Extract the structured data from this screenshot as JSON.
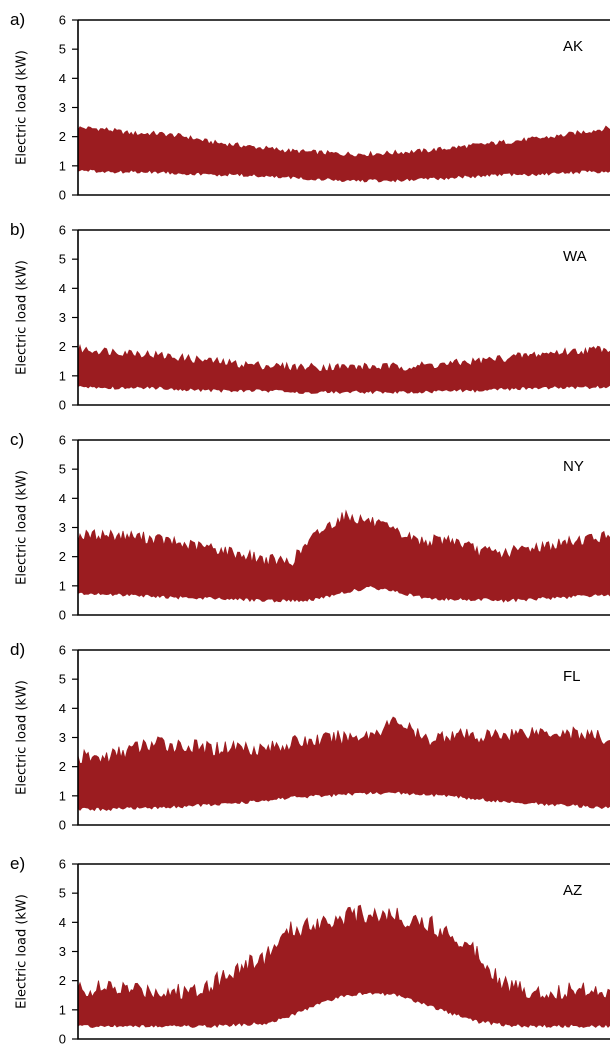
{
  "chart_data": [
    {
      "type": "area",
      "panel_label": "a)",
      "state": "AK",
      "title": "",
      "xlabel": "",
      "ylabel": "Electric load (kW)",
      "ylim": [
        0,
        6
      ],
      "yticks": [
        "0",
        "1",
        "2",
        "3",
        "4",
        "5",
        "6"
      ],
      "x": [
        0,
        0.05,
        0.1,
        0.15,
        0.2,
        0.25,
        0.3,
        0.35,
        0.4,
        0.45,
        0.5,
        0.55,
        0.6,
        0.65,
        0.7,
        0.75,
        0.8,
        0.85,
        0.9,
        0.95,
        1.0
      ],
      "series": [
        {
          "name": "",
          "kind": "upper",
          "values": [
            2.3,
            2.25,
            2.1,
            2.1,
            2.0,
            1.8,
            1.7,
            1.6,
            1.5,
            1.45,
            1.4,
            1.4,
            1.45,
            1.5,
            1.6,
            1.7,
            1.8,
            1.9,
            2.0,
            2.15,
            2.3
          ]
        },
        {
          "name": "",
          "kind": "lower",
          "values": [
            0.85,
            0.8,
            0.8,
            0.8,
            0.75,
            0.7,
            0.7,
            0.65,
            0.6,
            0.55,
            0.5,
            0.5,
            0.5,
            0.55,
            0.6,
            0.65,
            0.7,
            0.7,
            0.75,
            0.8,
            0.8
          ]
        }
      ]
    },
    {
      "type": "area",
      "panel_label": "b)",
      "state": "WA",
      "title": "",
      "xlabel": "",
      "ylabel": "Electric load (kW)",
      "ylim": [
        0,
        6
      ],
      "yticks": [
        "0",
        "1",
        "2",
        "3",
        "4",
        "5",
        "6"
      ],
      "x": [
        0,
        0.05,
        0.1,
        0.15,
        0.2,
        0.25,
        0.3,
        0.35,
        0.4,
        0.45,
        0.5,
        0.55,
        0.6,
        0.65,
        0.7,
        0.75,
        0.8,
        0.85,
        0.9,
        0.95,
        1.0
      ],
      "series": [
        {
          "name": "",
          "kind": "upper",
          "values": [
            1.9,
            1.85,
            1.8,
            1.7,
            1.6,
            1.5,
            1.4,
            1.35,
            1.3,
            1.3,
            1.3,
            1.3,
            1.3,
            1.35,
            1.4,
            1.5,
            1.6,
            1.7,
            1.8,
            1.85,
            1.95
          ]
        },
        {
          "name": "",
          "kind": "lower",
          "values": [
            0.65,
            0.6,
            0.6,
            0.6,
            0.55,
            0.5,
            0.5,
            0.5,
            0.45,
            0.45,
            0.45,
            0.45,
            0.45,
            0.45,
            0.5,
            0.5,
            0.55,
            0.6,
            0.6,
            0.6,
            0.65
          ]
        }
      ]
    },
    {
      "type": "area",
      "panel_label": "c)",
      "state": "NY",
      "title": "",
      "xlabel": "",
      "ylabel": "Electric load (kW)",
      "ylim": [
        0,
        6
      ],
      "yticks": [
        "0",
        "1",
        "2",
        "3",
        "4",
        "5",
        "6"
      ],
      "x": [
        0,
        0.05,
        0.1,
        0.15,
        0.2,
        0.25,
        0.3,
        0.35,
        0.4,
        0.45,
        0.5,
        0.55,
        0.6,
        0.65,
        0.7,
        0.75,
        0.8,
        0.85,
        0.9,
        0.95,
        1.0
      ],
      "series": [
        {
          "name": "",
          "kind": "upper",
          "values": [
            2.7,
            2.75,
            2.7,
            2.6,
            2.4,
            2.3,
            2.1,
            1.9,
            1.8,
            2.8,
            3.4,
            3.2,
            2.8,
            2.5,
            2.6,
            2.2,
            2.1,
            2.3,
            2.4,
            2.6,
            2.7
          ]
        },
        {
          "name": "",
          "kind": "lower",
          "values": [
            0.75,
            0.7,
            0.7,
            0.65,
            0.6,
            0.6,
            0.55,
            0.5,
            0.5,
            0.55,
            0.8,
            0.95,
            0.8,
            0.6,
            0.55,
            0.55,
            0.5,
            0.55,
            0.6,
            0.65,
            0.7
          ]
        }
      ]
    },
    {
      "type": "area",
      "panel_label": "d)",
      "state": "FL",
      "title": "",
      "xlabel": "",
      "ylabel": "Electric load (kW)",
      "ylim": [
        0,
        6
      ],
      "yticks": [
        "0",
        "1",
        "2",
        "3",
        "4",
        "5",
        "6"
      ],
      "x": [
        0,
        0.05,
        0.1,
        0.15,
        0.2,
        0.25,
        0.3,
        0.35,
        0.4,
        0.45,
        0.5,
        0.55,
        0.6,
        0.65,
        0.7,
        0.75,
        0.8,
        0.85,
        0.9,
        0.95,
        1.0
      ],
      "series": [
        {
          "name": "",
          "kind": "upper",
          "values": [
            2.3,
            2.3,
            2.6,
            2.8,
            2.7,
            2.6,
            2.7,
            2.6,
            2.8,
            2.9,
            3.0,
            3.1,
            3.6,
            2.9,
            3.1,
            3.0,
            3.1,
            3.2,
            3.2,
            3.1,
            2.9
          ]
        },
        {
          "name": "",
          "kind": "lower",
          "values": [
            0.55,
            0.55,
            0.6,
            0.6,
            0.65,
            0.7,
            0.75,
            0.85,
            0.95,
            1.0,
            1.05,
            1.1,
            1.1,
            1.05,
            1.0,
            0.9,
            0.8,
            0.75,
            0.7,
            0.65,
            0.6
          ]
        }
      ]
    },
    {
      "type": "area",
      "panel_label": "e)",
      "state": "AZ",
      "title": "",
      "xlabel": "",
      "ylabel": "Electric load (kW)",
      "ylim": [
        0,
        6
      ],
      "yticks": [
        "0",
        "1",
        "2",
        "3",
        "4",
        "5",
        "6"
      ],
      "x": [
        0,
        0.05,
        0.1,
        0.15,
        0.2,
        0.25,
        0.3,
        0.35,
        0.4,
        0.45,
        0.5,
        0.55,
        0.6,
        0.65,
        0.7,
        0.75,
        0.8,
        0.85,
        0.9,
        0.95,
        1.0
      ],
      "series": [
        {
          "name": "",
          "kind": "upper",
          "values": [
            1.7,
            1.7,
            1.7,
            1.65,
            1.6,
            1.9,
            2.4,
            2.8,
            3.7,
            4.0,
            4.2,
            4.3,
            4.2,
            4.0,
            3.6,
            3.0,
            1.9,
            1.6,
            1.6,
            1.7,
            1.7
          ]
        },
        {
          "name": "",
          "kind": "lower",
          "values": [
            0.45,
            0.45,
            0.45,
            0.45,
            0.45,
            0.45,
            0.5,
            0.55,
            0.8,
            1.2,
            1.5,
            1.6,
            1.5,
            1.2,
            0.9,
            0.6,
            0.5,
            0.45,
            0.45,
            0.45,
            0.45
          ]
        }
      ]
    }
  ],
  "colors": {
    "fill": "#9b1c20",
    "axis": "#000000",
    "background": "#ffffff"
  }
}
